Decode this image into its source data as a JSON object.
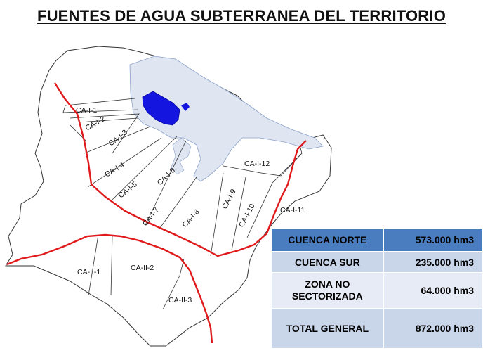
{
  "title": "FUENTES DE AGUA SUBTERRANEA DEL TERRITORIO",
  "map": {
    "labels": {
      "ca_i_1": "CA-I-1",
      "ca_i_2": "CA-I-2",
      "ca_i_3": "CA-I-3",
      "ca_i_4": "CA-I-4",
      "ca_i_5": "CA-I-5",
      "ca_i_6": "CA-I-6",
      "ca_i_7": "CA-I-7",
      "ca_i_8": "CA-I-8",
      "ca_i_9": "CA-I-9",
      "ca_i_10": "CA-I-10",
      "ca_i_11": "CA-I-11",
      "ca_i_12": "CA-I-12",
      "ca_ii_1": "CA-II-1",
      "ca_ii_2": "CA-II-2",
      "ca_ii_3": "CA-II-3"
    },
    "colors": {
      "boundary": "#e0191b",
      "lake": "#1515e0",
      "wetland": "#dfe6f2",
      "outline": "#333333"
    }
  },
  "summary": {
    "rows": [
      {
        "label": "CUENCA NORTE",
        "value": "573.000 hm3"
      },
      {
        "label": "CUENCA SUR",
        "value": "235.000 hm3"
      },
      {
        "label_line1": "ZONA NO",
        "label_line2": "SECTORIZADA",
        "value": "64.000 hm3"
      },
      {
        "label": "TOTAL GENERAL",
        "value": "872.000 hm3"
      }
    ]
  }
}
